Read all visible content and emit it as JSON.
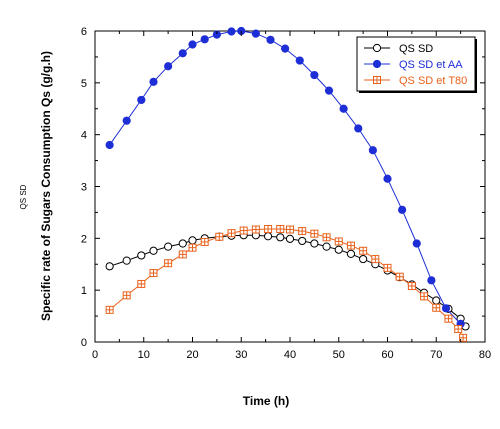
{
  "side_label": "QS SD",
  "chart_data": {
    "type": "line",
    "xlabel": "Time (h)",
    "ylabel": "Specific rate of Sugars Consumption Qs (g/g.h)",
    "xlim": [
      0,
      80
    ],
    "ylim": [
      0,
      6
    ],
    "xticks": [
      0,
      10,
      20,
      30,
      40,
      50,
      60,
      70,
      80
    ],
    "yticks": [
      0,
      1,
      2,
      3,
      4,
      5,
      6
    ],
    "grid": false,
    "legend_position": "top-right",
    "series": [
      {
        "name": "QS SD",
        "color": "#000000",
        "marker": "open-circle",
        "x": [
          3,
          6.5,
          9.5,
          12,
          15,
          18,
          20,
          22.5,
          25.5,
          28,
          30.5,
          33,
          35.5,
          38,
          40,
          42.5,
          45,
          47.5,
          50,
          52.5,
          55,
          57.5,
          60,
          62.5,
          65,
          67.5,
          70,
          72.5,
          75,
          76
        ],
        "y": [
          1.46,
          1.57,
          1.67,
          1.76,
          1.84,
          1.9,
          1.96,
          2.0,
          2.03,
          2.05,
          2.06,
          2.06,
          2.04,
          2.02,
          1.99,
          1.95,
          1.9,
          1.84,
          1.78,
          1.7,
          1.6,
          1.5,
          1.38,
          1.25,
          1.11,
          0.95,
          0.8,
          0.64,
          0.45,
          0.3
        ]
      },
      {
        "name": "QS SD et AA",
        "color": "#1e2ed6",
        "marker": "filled-circle",
        "x": [
          3,
          6.5,
          9.5,
          12,
          15,
          18,
          20,
          22.5,
          25,
          28,
          30,
          33,
          36,
          39,
          42,
          45,
          48,
          51,
          54,
          57,
          60,
          63,
          66,
          69,
          72,
          75
        ],
        "y": [
          3.8,
          4.27,
          4.67,
          5.02,
          5.32,
          5.57,
          5.74,
          5.84,
          5.93,
          5.99,
          6.0,
          5.95,
          5.83,
          5.66,
          5.43,
          5.15,
          4.85,
          4.5,
          4.12,
          3.7,
          3.15,
          2.55,
          1.9,
          1.19,
          0.65,
          0.35
        ]
      },
      {
        "name": "QS SD et T80",
        "color": "#e8611a",
        "marker": "open-square-plus",
        "x": [
          3,
          6.5,
          9.5,
          12,
          15,
          18,
          20,
          22.5,
          25.5,
          28,
          30.5,
          33,
          35.5,
          38,
          40,
          42.5,
          45,
          47.5,
          50,
          52.5,
          55,
          57.5,
          60,
          62.5,
          65,
          67.5,
          70,
          72.5,
          74.5,
          75.5
        ],
        "y": [
          0.62,
          0.9,
          1.12,
          1.33,
          1.52,
          1.69,
          1.82,
          1.93,
          2.03,
          2.1,
          2.15,
          2.17,
          2.18,
          2.18,
          2.17,
          2.14,
          2.09,
          2.02,
          1.94,
          1.86,
          1.76,
          1.6,
          1.43,
          1.26,
          1.08,
          0.88,
          0.66,
          0.45,
          0.25,
          0.08
        ]
      }
    ]
  }
}
